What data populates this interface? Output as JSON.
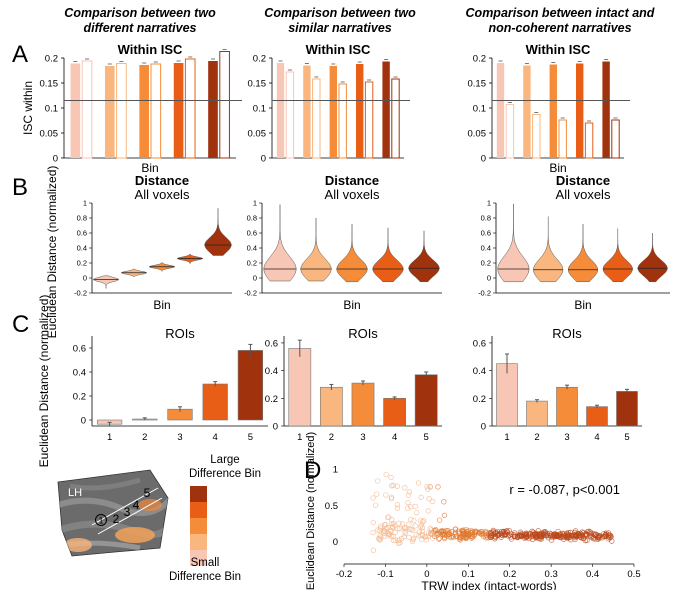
{
  "figure": {
    "panel_labels": [
      "A",
      "B",
      "C",
      "D"
    ],
    "column_titles": [
      [
        "Comparison between two",
        "different narratives"
      ],
      [
        "Comparison between two",
        "similar narratives"
      ],
      [
        "Comparison between intact and",
        "non-coherent narratives"
      ]
    ]
  },
  "colors": {
    "bins": [
      "#f7c6b4",
      "#f9b67e",
      "#f48c3a",
      "#e85e16",
      "#a0320e"
    ],
    "reference_line": "#555555",
    "scatter": "#e0782f"
  },
  "chart_data": [
    {
      "id": "A1",
      "type": "bar",
      "title": "Within ISC",
      "xlabel": "Bin",
      "ylabel": "ISC within",
      "ylim": [
        0,
        0.2
      ],
      "yticks": [
        "0",
        "0.05",
        "0.1",
        "0.15",
        "0.2"
      ],
      "reference_line": 0.115,
      "categories": [
        "1",
        "2",
        "3",
        "4",
        "5"
      ],
      "series": [
        {
          "values": [
            0.189,
            0.184,
            0.186,
            0.19,
            0.194
          ]
        },
        {
          "values": [
            0.194,
            0.189,
            0.188,
            0.198,
            0.213
          ]
        }
      ]
    },
    {
      "id": "A2",
      "type": "bar",
      "title": "Within ISC",
      "xlabel": "",
      "ylabel": "",
      "ylim": [
        0,
        0.2
      ],
      "yticks": [
        "0",
        "0.05",
        "0.1",
        "0.15",
        "0.2"
      ],
      "reference_line": 0.115,
      "categories": [
        "1",
        "2",
        "3",
        "4",
        "5"
      ],
      "series": [
        {
          "values": [
            0.19,
            0.185,
            0.184,
            0.188,
            0.193
          ]
        },
        {
          "values": [
            0.172,
            0.158,
            0.148,
            0.152,
            0.158
          ]
        }
      ]
    },
    {
      "id": "A3",
      "type": "bar",
      "title": "Within ISC",
      "xlabel": "Bin",
      "ylabel": "",
      "ylim": [
        0,
        0.2
      ],
      "yticks": [
        "0",
        "0.05",
        "0.1",
        "0.15",
        "0.2"
      ],
      "reference_line": 0.115,
      "categories": [
        "1",
        "2",
        "3",
        "4",
        "5"
      ],
      "series": [
        {
          "values": [
            0.19,
            0.185,
            0.187,
            0.189,
            0.193
          ]
        },
        {
          "values": [
            0.107,
            0.087,
            0.076,
            0.07,
            0.076
          ]
        }
      ]
    },
    {
      "id": "B1",
      "type": "violin",
      "title": "Distance",
      "subtitle": "All voxels",
      "xlabel": "Bin",
      "ylabel": "Euclidean Distance (normalized)",
      "ylim": [
        -0.2,
        1
      ],
      "yticks": [
        "-0.2",
        "0",
        "0.2",
        "0.4",
        "0.6",
        "0.8",
        "1"
      ],
      "categories": [
        "1",
        "2",
        "3",
        "4",
        "5"
      ],
      "medians": [
        -0.02,
        0.07,
        0.15,
        0.26,
        0.44
      ],
      "ranges": [
        [
          -0.14,
          0.03
        ],
        [
          0.02,
          0.12
        ],
        [
          0.09,
          0.21
        ],
        [
          0.19,
          0.32
        ],
        [
          0.3,
          0.93
        ]
      ],
      "widths": [
        0.9,
        0.9,
        0.9,
        0.9,
        0.95
      ]
    },
    {
      "id": "B2",
      "type": "violin",
      "title": "Distance",
      "subtitle": "All voxels",
      "xlabel": "Bin",
      "ylabel": "",
      "ylim": [
        -0.2,
        1
      ],
      "yticks": [
        "-0.2",
        "0",
        "0.2",
        "0.4",
        "0.6",
        "0.8",
        "1"
      ],
      "categories": [
        "1",
        "2",
        "3",
        "4",
        "5"
      ],
      "medians": [
        0.12,
        0.12,
        0.12,
        0.12,
        0.13
      ],
      "ranges": [
        [
          -0.04,
          0.98
        ],
        [
          -0.04,
          0.8
        ],
        [
          -0.05,
          0.72
        ],
        [
          -0.05,
          0.67
        ],
        [
          -0.05,
          0.63
        ]
      ],
      "widths": [
        0.9,
        0.85,
        0.85,
        0.85,
        0.85
      ]
    },
    {
      "id": "B3",
      "type": "violin",
      "title": "Distance",
      "subtitle": "All voxels",
      "xlabel": "Bin",
      "ylabel": "",
      "ylim": [
        -0.2,
        1
      ],
      "yticks": [
        "-0.2",
        "0",
        "0.2",
        "0.4",
        "0.6",
        "0.8",
        "1"
      ],
      "categories": [
        "1",
        "2",
        "3",
        "4",
        "5"
      ],
      "medians": [
        0.12,
        0.11,
        0.11,
        0.12,
        0.13
      ],
      "ranges": [
        [
          -0.05,
          0.99
        ],
        [
          -0.05,
          0.82
        ],
        [
          -0.05,
          0.72
        ],
        [
          -0.05,
          0.66
        ],
        [
          -0.05,
          0.6
        ]
      ],
      "widths": [
        0.9,
        0.85,
        0.85,
        0.85,
        0.85
      ]
    },
    {
      "id": "C1",
      "type": "bar",
      "title": "ROIs",
      "xlabel": "",
      "ylabel": "Euclidean Distance (normalized)",
      "ylim": [
        -0.05,
        0.7
      ],
      "yticks": [
        "0",
        "0.2",
        "0.4",
        "0.6"
      ],
      "categories": [
        "1",
        "2",
        "3",
        "4",
        "5"
      ],
      "values": [
        -0.035,
        0.008,
        0.09,
        0.3,
        0.58
      ],
      "errors": [
        0.015,
        0.01,
        0.02,
        0.02,
        0.05
      ]
    },
    {
      "id": "C2",
      "type": "bar",
      "title": "ROIs",
      "xlabel": "",
      "ylabel": "",
      "ylim": [
        0,
        0.65
      ],
      "yticks": [
        "0",
        "0.2",
        "0.4",
        "0.6"
      ],
      "categories": [
        "1",
        "2",
        "3",
        "4",
        "5"
      ],
      "values": [
        0.56,
        0.28,
        0.31,
        0.2,
        0.37
      ],
      "errors": [
        0.06,
        0.02,
        0.015,
        0.01,
        0.02
      ]
    },
    {
      "id": "C3",
      "type": "bar",
      "title": "ROIs",
      "xlabel": "",
      "ylabel": "",
      "ylim": [
        0,
        0.65
      ],
      "yticks": [
        "0",
        "0.2",
        "0.4",
        "0.6"
      ],
      "categories": [
        "1",
        "2",
        "3",
        "4",
        "5"
      ],
      "values": [
        0.45,
        0.18,
        0.28,
        0.14,
        0.25
      ],
      "errors": [
        0.07,
        0.01,
        0.015,
        0.01,
        0.015
      ]
    },
    {
      "id": "D",
      "type": "scatter",
      "xlabel": "TRW index (intact-words)",
      "ylabel": "Euclidean Distance (normalized)",
      "xlim": [
        -0.2,
        0.5
      ],
      "ylim": [
        -0.3,
        1.05
      ],
      "xticks": [
        "-0.2",
        "-0.1",
        "0",
        "0.1",
        "0.2",
        "0.3",
        "0.4",
        "0.5"
      ],
      "yticks": [
        "0",
        "0.5",
        "1"
      ],
      "annotation": "r = -0.087, p<0.001"
    }
  ],
  "legend": {
    "label_top_1": "Large",
    "label_top_2": "Difference Bin",
    "label_bottom_1": "Small",
    "label_bottom_2": "Difference Bin"
  },
  "brain": {
    "hemisphere": "LH",
    "roi_numbers": [
      "1",
      "2",
      "3",
      "4",
      "5"
    ]
  }
}
